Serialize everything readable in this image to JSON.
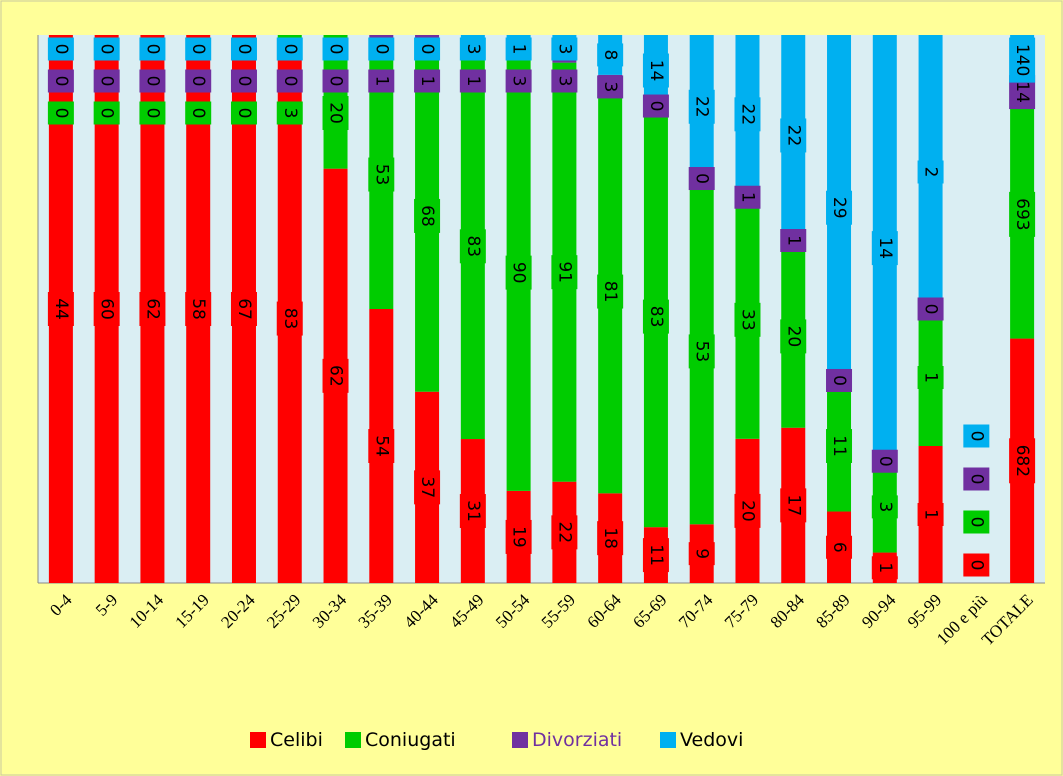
{
  "chart_data": {
    "type": "bar",
    "stacking": "percent",
    "categories": [
      "0-4",
      "5-9",
      "10-14",
      "15-19",
      "20-24",
      "25-29",
      "30-34",
      "35-39",
      "40-44",
      "45-49",
      "50-54",
      "55-59",
      "60-64",
      "65-69",
      "70-74",
      "75-79",
      "80-84",
      "85-89",
      "90-94",
      "95-99",
      "100 e più",
      "TOTALE"
    ],
    "series": [
      {
        "name": "Celibi",
        "color": "#ff0000",
        "legend_text_color": "#000000",
        "values": [
          44,
          60,
          62,
          58,
          67,
          83,
          62,
          54,
          37,
          31,
          19,
          22,
          18,
          11,
          9,
          20,
          17,
          6,
          1,
          1,
          0,
          682
        ]
      },
      {
        "name": "Coniugati",
        "color": "#00cc00",
        "legend_text_color": "#000000",
        "values": [
          0,
          0,
          0,
          0,
          0,
          3,
          20,
          53,
          68,
          83,
          90,
          91,
          81,
          83,
          53,
          33,
          20,
          11,
          3,
          1,
          0,
          693
        ]
      },
      {
        "name": "Divorziati",
        "color": "#7030a0",
        "legend_text_color": "#7030a0",
        "values": [
          0,
          0,
          0,
          0,
          0,
          0,
          0,
          1,
          1,
          1,
          3,
          3,
          3,
          0,
          0,
          1,
          1,
          0,
          0,
          0,
          0,
          14
        ]
      },
      {
        "name": "Vedovi",
        "color": "#00b0f0",
        "legend_text_color": "#000000",
        "values": [
          0,
          0,
          0,
          0,
          0,
          0,
          0,
          0,
          0,
          3,
          1,
          3,
          8,
          14,
          22,
          22,
          22,
          29,
          14,
          2,
          0,
          140
        ]
      }
    ],
    "legend": "bottom"
  }
}
